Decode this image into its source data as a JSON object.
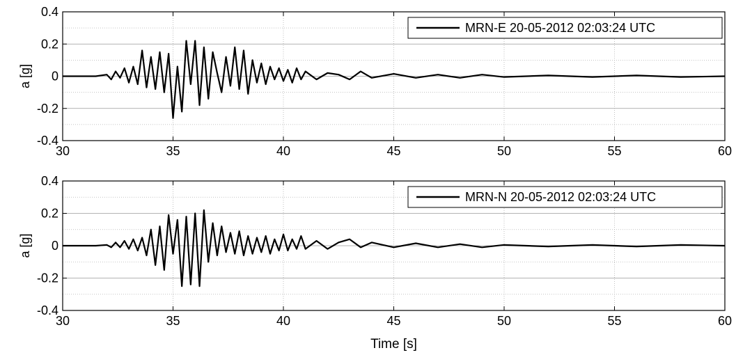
{
  "figure": {
    "xlabel": "Time [s]"
  },
  "chart_data": [
    {
      "type": "line",
      "ylabel": "a [g]",
      "xlim": [
        30,
        60
      ],
      "ylim": [
        -0.4,
        0.4
      ],
      "xticks": [
        "30",
        "35",
        "40",
        "45",
        "50",
        "55",
        "60"
      ],
      "yticks": [
        "0.4",
        "0.2",
        "0",
        "-0.2",
        "-0.4"
      ],
      "grid": true,
      "legend_position": "top-right",
      "series": [
        {
          "name": "MRN-E 20-05-2012 02:03:24 UTC",
          "color": "#000000",
          "x": [
            30.0,
            31.5,
            32.0,
            32.2,
            32.4,
            32.6,
            32.8,
            33.0,
            33.2,
            33.4,
            33.6,
            33.8,
            34.0,
            34.2,
            34.4,
            34.6,
            34.8,
            35.0,
            35.2,
            35.4,
            35.6,
            35.8,
            36.0,
            36.2,
            36.4,
            36.6,
            36.8,
            37.0,
            37.2,
            37.4,
            37.6,
            37.8,
            38.0,
            38.2,
            38.4,
            38.6,
            38.8,
            39.0,
            39.2,
            39.4,
            39.6,
            39.8,
            40.0,
            40.2,
            40.4,
            40.6,
            40.8,
            41.0,
            41.5,
            42.0,
            42.5,
            43.0,
            43.5,
            44.0,
            45.0,
            46.0,
            47.0,
            48.0,
            49.0,
            50.0,
            52.0,
            54.0,
            56.0,
            58.0,
            60.0
          ],
          "y": [
            0.0,
            0.0,
            0.01,
            -0.02,
            0.03,
            -0.01,
            0.05,
            -0.04,
            0.06,
            -0.05,
            0.16,
            -0.07,
            0.12,
            -0.08,
            0.15,
            -0.1,
            0.14,
            -0.26,
            0.06,
            -0.22,
            0.22,
            -0.05,
            0.22,
            -0.18,
            0.18,
            -0.14,
            0.15,
            0.02,
            -0.1,
            0.12,
            -0.06,
            0.18,
            -0.08,
            0.16,
            -0.11,
            0.1,
            -0.04,
            0.08,
            -0.05,
            0.06,
            -0.02,
            0.05,
            -0.03,
            0.04,
            -0.04,
            0.05,
            -0.02,
            0.03,
            -0.02,
            0.02,
            0.01,
            -0.02,
            0.03,
            -0.01,
            0.015,
            -0.01,
            0.01,
            -0.01,
            0.01,
            -0.005,
            0.005,
            -0.005,
            0.005,
            -0.005,
            0.0
          ]
        }
      ]
    },
    {
      "type": "line",
      "ylabel": "a [g]",
      "xlim": [
        30,
        60
      ],
      "ylim": [
        -0.4,
        0.4
      ],
      "xticks": [
        "30",
        "35",
        "40",
        "45",
        "50",
        "55",
        "60"
      ],
      "yticks": [
        "0.4",
        "0.2",
        "0",
        "-0.2",
        "-0.4"
      ],
      "grid": true,
      "legend_position": "top-right",
      "series": [
        {
          "name": "MRN-N 20-05-2012 02:03:24 UTC",
          "color": "#000000",
          "x": [
            30.0,
            31.5,
            32.0,
            32.2,
            32.4,
            32.6,
            32.8,
            33.0,
            33.2,
            33.4,
            33.6,
            33.8,
            34.0,
            34.2,
            34.4,
            34.6,
            34.8,
            35.0,
            35.2,
            35.4,
            35.6,
            35.8,
            36.0,
            36.2,
            36.4,
            36.6,
            36.8,
            37.0,
            37.2,
            37.4,
            37.6,
            37.8,
            38.0,
            38.2,
            38.4,
            38.6,
            38.8,
            39.0,
            39.2,
            39.4,
            39.6,
            39.8,
            40.0,
            40.2,
            40.4,
            40.6,
            40.8,
            41.0,
            41.5,
            42.0,
            42.5,
            43.0,
            43.5,
            44.0,
            45.0,
            46.0,
            47.0,
            48.0,
            49.0,
            50.0,
            52.0,
            54.0,
            56.0,
            58.0,
            60.0
          ],
          "y": [
            0.0,
            0.0,
            0.005,
            -0.01,
            0.02,
            -0.01,
            0.03,
            -0.02,
            0.04,
            -0.03,
            0.05,
            -0.06,
            0.1,
            -0.12,
            0.12,
            -0.15,
            0.19,
            -0.05,
            0.16,
            -0.25,
            0.18,
            -0.24,
            0.2,
            -0.25,
            0.22,
            -0.1,
            0.14,
            -0.06,
            0.12,
            -0.04,
            0.08,
            -0.05,
            0.09,
            -0.06,
            0.06,
            -0.05,
            0.05,
            -0.04,
            0.06,
            -0.05,
            0.04,
            -0.03,
            0.07,
            -0.03,
            0.04,
            -0.02,
            0.06,
            -0.02,
            0.03,
            -0.02,
            0.02,
            0.04,
            -0.01,
            0.02,
            -0.01,
            0.015,
            -0.01,
            0.01,
            -0.01,
            0.005,
            -0.005,
            0.005,
            -0.005,
            0.005,
            0.0
          ]
        }
      ]
    }
  ]
}
